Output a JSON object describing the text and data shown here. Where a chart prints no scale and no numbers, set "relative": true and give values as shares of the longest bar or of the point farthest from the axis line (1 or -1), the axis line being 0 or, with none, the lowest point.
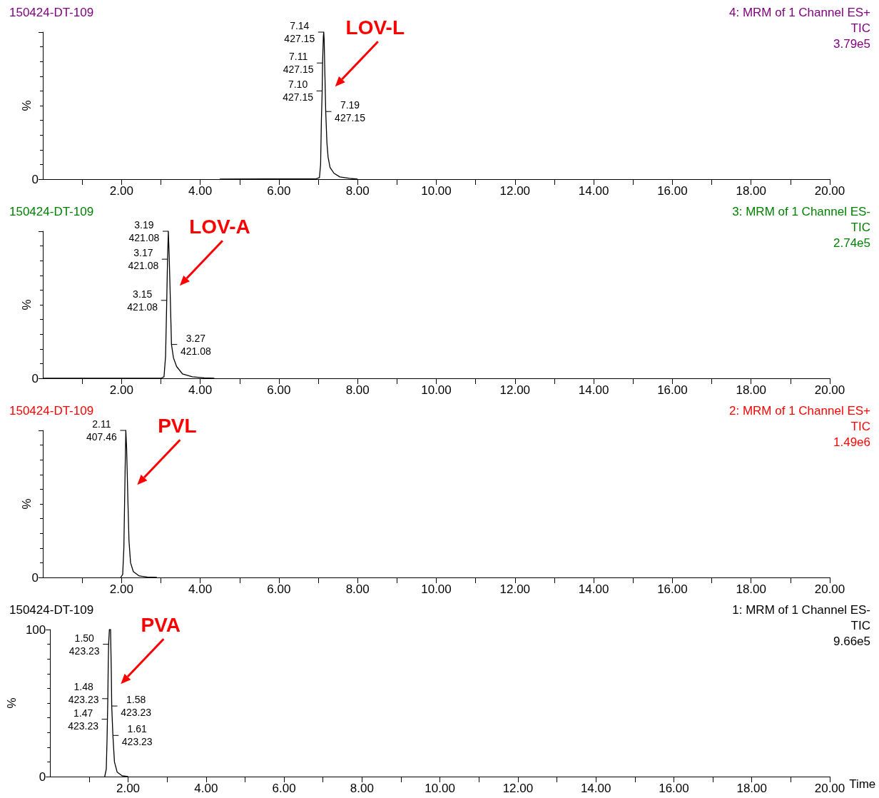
{
  "chart_data": [
    {
      "type": "line",
      "title": "150424-DT-109",
      "subtitle": "4: MRM of 1 Channel ES+\nTIC\n3.79e5",
      "ylabel": "%",
      "relative": true,
      "x": [
        4.5,
        6.95,
        7.03,
        7.06,
        7.08,
        7.1,
        7.11,
        7.13,
        7.14,
        7.15,
        7.17,
        7.19,
        7.22,
        7.25,
        7.3,
        7.4,
        7.55,
        7.8,
        8.0
      ],
      "series": [
        {
          "color": "#000000",
          "values": [
            0,
            0.003,
            0.01,
            0.1,
            0.4,
            0.6,
            0.79,
            0.97,
            1,
            0.95,
            0.7,
            0.46,
            0.25,
            0.15,
            0.08,
            0.04,
            0.015,
            0.005,
            0
          ]
        }
      ],
      "annotations": [
        {
          "text": "7.14\n427.15",
          "x": 7.14,
          "y": 1
        },
        {
          "text": "7.11\n427.15",
          "x": 7.11,
          "y": 0.79
        },
        {
          "text": "7.10\n427.15",
          "x": 7.1,
          "y": 0.6
        },
        {
          "text": "7.19\n427.15",
          "x": 7.19,
          "y": 0.46
        },
        "LOV-L",
        "0"
      ],
      "xlim": [
        0,
        20
      ],
      "xticks": [
        {
          "value": 1,
          "label": null
        },
        {
          "value": 2,
          "label": "2.00"
        },
        {
          "value": 3,
          "label": null
        },
        {
          "value": 4,
          "label": "4.00"
        },
        {
          "value": 5,
          "label": null
        },
        {
          "value": 6,
          "label": "6.00"
        },
        {
          "value": 7,
          "label": null
        },
        {
          "value": 8,
          "label": "8.00"
        },
        {
          "value": 9,
          "label": null
        },
        {
          "value": 10,
          "label": "10.00"
        },
        {
          "value": 11,
          "label": null
        },
        {
          "value": 12,
          "label": "12.00"
        },
        {
          "value": 13,
          "label": null
        },
        {
          "value": 14,
          "label": "14.00"
        },
        {
          "value": 15,
          "label": null
        },
        {
          "value": 16,
          "label": "16.00"
        },
        {
          "value": 17,
          "label": null
        },
        {
          "value": 18,
          "label": "18.00"
        },
        {
          "value": 19,
          "label": null
        },
        {
          "value": 20,
          "label": "20.00"
        }
      ]
    },
    {
      "type": "line",
      "title": "150424-DT-109",
      "subtitle": "3: MRM of 1 Channel ES-\nTIC\n2.74e5",
      "ylabel": "%",
      "relative": true,
      "x": [
        0,
        3.0,
        3.08,
        3.12,
        3.15,
        3.17,
        3.19,
        3.21,
        3.24,
        3.27,
        3.32,
        3.4,
        3.55,
        3.8,
        4.1,
        4.36
      ],
      "series": [
        {
          "color": "#000000",
          "values": [
            0,
            0,
            0.01,
            0.15,
            0.53,
            0.81,
            1,
            0.85,
            0.55,
            0.23,
            0.14,
            0.08,
            0.03,
            0.01,
            0.003,
            0
          ]
        }
      ],
      "annotations": [
        {
          "text": "3.19\n421.08",
          "x": 3.19,
          "y": 1
        },
        {
          "text": "3.17\n421.08",
          "x": 3.17,
          "y": 0.81
        },
        {
          "text": "3.15\n421.08",
          "x": 3.15,
          "y": 0.53
        },
        {
          "text": "3.27\n421.08",
          "x": 3.27,
          "y": 0.23
        },
        "LOV-A",
        "0"
      ],
      "xlim": [
        0,
        20
      ],
      "xticks": [
        {
          "value": 1,
          "label": null
        },
        {
          "value": 2,
          "label": "2.00"
        },
        {
          "value": 3,
          "label": null
        },
        {
          "value": 4,
          "label": "4.00"
        },
        {
          "value": 5,
          "label": null
        },
        {
          "value": 6,
          "label": "6.00"
        },
        {
          "value": 7,
          "label": null
        },
        {
          "value": 8,
          "label": "8.00"
        },
        {
          "value": 9,
          "label": null
        },
        {
          "value": 10,
          "label": "10.00"
        },
        {
          "value": 11,
          "label": null
        },
        {
          "value": 12,
          "label": "12.00"
        },
        {
          "value": 13,
          "label": null
        },
        {
          "value": 14,
          "label": "14.00"
        },
        {
          "value": 15,
          "label": null
        },
        {
          "value": 16,
          "label": "16.00"
        },
        {
          "value": 17,
          "label": null
        },
        {
          "value": 18,
          "label": "18.00"
        },
        {
          "value": 19,
          "label": null
        },
        {
          "value": 20,
          "label": "20.00"
        }
      ]
    },
    {
      "type": "line",
      "title": "150424-DT-109",
      "subtitle": "2: MRM of 1 Channel ES+\nTIC\n1.49e6",
      "ylabel": "%",
      "relative": true,
      "x": [
        1.98,
        2.03,
        2.06,
        2.09,
        2.11,
        2.13,
        2.16,
        2.19,
        2.23,
        2.3,
        2.45,
        2.65,
        2.9
      ],
      "series": [
        {
          "color": "#000000",
          "values": [
            0,
            0.02,
            0.2,
            0.7,
            1,
            0.88,
            0.55,
            0.25,
            0.1,
            0.04,
            0.01,
            0.003,
            0
          ]
        }
      ],
      "annotations": [
        {
          "text": "2.11\n407.46",
          "x": 2.11,
          "y": 1
        },
        "PVL",
        "0"
      ],
      "xlim": [
        0,
        20
      ],
      "xticks": [
        {
          "value": 1,
          "label": null
        },
        {
          "value": 2,
          "label": "2.00"
        },
        {
          "value": 3,
          "label": null
        },
        {
          "value": 4,
          "label": "4.00"
        },
        {
          "value": 5,
          "label": null
        },
        {
          "value": 6,
          "label": "6.00"
        },
        {
          "value": 7,
          "label": null
        },
        {
          "value": 8,
          "label": "8.00"
        },
        {
          "value": 9,
          "label": null
        },
        {
          "value": 10,
          "label": "10.00"
        },
        {
          "value": 11,
          "label": null
        },
        {
          "value": 12,
          "label": "12.00"
        },
        {
          "value": 13,
          "label": null
        },
        {
          "value": 14,
          "label": "14.00"
        },
        {
          "value": 15,
          "label": null
        },
        {
          "value": 16,
          "label": "16.00"
        },
        {
          "value": 17,
          "label": null
        },
        {
          "value": 18,
          "label": "18.00"
        },
        {
          "value": 19,
          "label": null
        },
        {
          "value": 20,
          "label": "20.00"
        }
      ]
    },
    {
      "type": "line",
      "title": "150424-DT-109",
      "subtitle": "1: MRM of 1 Channel ES-\nTIC\n9.66e5",
      "ylabel": "%",
      "xlabel": "Time",
      "x": [
        1.4,
        1.44,
        1.46,
        1.47,
        1.48,
        1.49,
        1.5,
        1.52,
        1.55,
        1.57,
        1.58,
        1.61,
        1.65,
        1.72,
        1.85,
        2.0
      ],
      "series": [
        {
          "color": "#000000",
          "values": [
            0,
            5,
            25,
            39,
            53,
            75,
            90,
            100,
            100,
            70,
            48,
            28,
            10,
            3,
            0.5,
            0
          ]
        }
      ],
      "annotations": [
        {
          "text": "1.50\n423.23",
          "x": 1.5,
          "y": 90
        },
        {
          "text": "1.48\n423.23",
          "x": 1.48,
          "y": 53
        },
        {
          "text": "1.47\n423.23",
          "x": 1.47,
          "y": 39
        },
        {
          "text": "1.58\n423.23",
          "x": 1.58,
          "y": 48
        },
        {
          "text": "1.61\n423.23",
          "x": 1.61,
          "y": 28
        },
        "PVA"
      ],
      "xlim": [
        0,
        20
      ],
      "xticks": [
        {
          "value": 1,
          "label": null
        },
        {
          "value": 2,
          "label": "2.00"
        },
        {
          "value": 3,
          "label": null
        },
        {
          "value": 4,
          "label": "4.00"
        },
        {
          "value": 5,
          "label": null
        },
        {
          "value": 6,
          "label": "6.00"
        },
        {
          "value": 7,
          "label": null
        },
        {
          "value": 8,
          "label": "8.00"
        },
        {
          "value": 9,
          "label": null
        },
        {
          "value": 10,
          "label": "10.00"
        },
        {
          "value": 11,
          "label": null
        },
        {
          "value": 12,
          "label": "12.00"
        },
        {
          "value": 13,
          "label": null
        },
        {
          "value": 14,
          "label": "14.00"
        },
        {
          "value": 15,
          "label": null
        },
        {
          "value": 16,
          "label": "16.00"
        },
        {
          "value": 17,
          "label": null
        },
        {
          "value": 18,
          "label": "18.00"
        },
        {
          "value": 19,
          "label": null
        },
        {
          "value": 20,
          "label": "20.00"
        }
      ],
      "ylim": [
        0,
        100
      ],
      "yticks": [
        0,
        100
      ],
      "grid": false
    }
  ]
}
